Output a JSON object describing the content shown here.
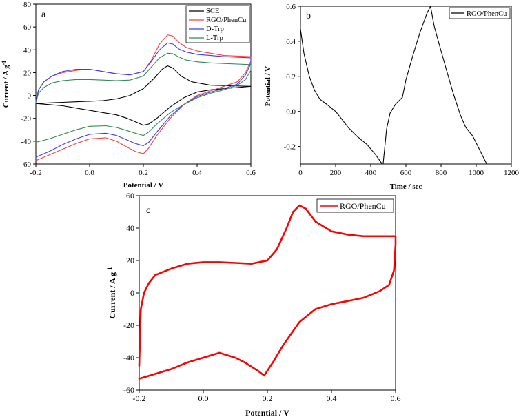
{
  "chart_data": [
    {
      "panel": "a",
      "type": "line",
      "title": "",
      "xlabel": "Potential / V",
      "ylabel": "Current / A g",
      "ylabel_sup": "-1",
      "xlim": [
        -0.2,
        0.6
      ],
      "ylim": [
        -60,
        80
      ],
      "xticks": [
        -0.2,
        0.0,
        0.2,
        0.4,
        0.6
      ],
      "yticks": [
        -60,
        -40,
        -20,
        0,
        20,
        40,
        60,
        80
      ],
      "xtick_labels": [
        "-0.2",
        "0.0",
        "0.2",
        "0.4",
        "0.6"
      ],
      "ytick_labels": [
        "-60",
        "-40",
        "-20",
        "0",
        "20",
        "40",
        "60",
        "80"
      ],
      "legend": "top-right",
      "series": [
        {
          "name": "SCE",
          "color": "#000000",
          "x": [
            -0.2,
            -0.15,
            -0.1,
            -0.05,
            0.0,
            0.05,
            0.1,
            0.15,
            0.2,
            0.24,
            0.27,
            0.29,
            0.31,
            0.34,
            0.38,
            0.45,
            0.52,
            0.6,
            0.6,
            0.55,
            0.5,
            0.45,
            0.4,
            0.35,
            0.3,
            0.25,
            0.22,
            0.2,
            0.18,
            0.14,
            0.1,
            0.05,
            0.0,
            -0.05,
            -0.1,
            -0.15,
            -0.2
          ],
          "y": [
            -7,
            -6.5,
            -6,
            -5.5,
            -5,
            -4.5,
            -3,
            0,
            6,
            15,
            23,
            26,
            24,
            17,
            12,
            9,
            8.5,
            8,
            8,
            7,
            6,
            5,
            3,
            -2,
            -10,
            -20,
            -25,
            -26,
            -24,
            -20,
            -17,
            -15,
            -13,
            -11,
            -9,
            -8,
            -7
          ]
        },
        {
          "name": "RGO/PhenCu",
          "color": "#ff3b3b",
          "x": [
            -0.2,
            -0.19,
            -0.17,
            -0.14,
            -0.1,
            -0.05,
            0.0,
            0.05,
            0.1,
            0.15,
            0.2,
            0.23,
            0.26,
            0.29,
            0.31,
            0.33,
            0.36,
            0.4,
            0.45,
            0.5,
            0.55,
            0.6,
            0.6,
            0.58,
            0.55,
            0.5,
            0.45,
            0.4,
            0.35,
            0.3,
            0.25,
            0.22,
            0.2,
            0.17,
            0.13,
            0.1,
            0.06,
            0.0,
            -0.05,
            -0.1,
            -0.15,
            -0.2
          ],
          "y": [
            -5,
            5,
            12,
            17,
            20,
            22,
            23,
            21,
            19,
            18,
            21,
            31,
            45,
            53,
            52,
            47,
            42,
            39,
            37,
            35,
            34.5,
            34,
            30,
            20,
            12,
            8,
            4,
            0,
            -8,
            -20,
            -35,
            -46,
            -51,
            -49,
            -44,
            -40,
            -37,
            -38,
            -42,
            -47,
            -52,
            -57
          ]
        },
        {
          "name": "D-Trp",
          "color": "#3b3bff",
          "x": [
            -0.2,
            -0.19,
            -0.17,
            -0.14,
            -0.1,
            -0.05,
            0.0,
            0.05,
            0.1,
            0.15,
            0.2,
            0.23,
            0.26,
            0.29,
            0.31,
            0.33,
            0.36,
            0.4,
            0.45,
            0.5,
            0.55,
            0.6,
            0.6,
            0.58,
            0.55,
            0.5,
            0.45,
            0.4,
            0.35,
            0.3,
            0.25,
            0.22,
            0.2,
            0.17,
            0.13,
            0.1,
            0.06,
            0.0,
            -0.05,
            -0.1,
            -0.15,
            -0.2
          ],
          "y": [
            -5,
            5,
            12,
            17,
            21,
            23,
            23,
            21,
            19,
            18,
            21,
            30,
            40,
            46,
            45,
            41,
            38,
            36,
            35,
            34,
            33.5,
            33,
            28,
            18,
            10,
            6,
            3,
            -1,
            -8,
            -18,
            -32,
            -41,
            -44,
            -42,
            -38,
            -35,
            -33,
            -34,
            -38,
            -43,
            -49,
            -54
          ]
        },
        {
          "name": "L-Trp",
          "color": "#2e8b57",
          "x": [
            -0.2,
            -0.19,
            -0.17,
            -0.14,
            -0.1,
            -0.05,
            0.0,
            0.05,
            0.1,
            0.15,
            0.2,
            0.23,
            0.26,
            0.29,
            0.31,
            0.33,
            0.36,
            0.4,
            0.45,
            0.5,
            0.55,
            0.6,
            0.6,
            0.58,
            0.55,
            0.5,
            0.45,
            0.4,
            0.35,
            0.3,
            0.25,
            0.22,
            0.2,
            0.17,
            0.13,
            0.1,
            0.06,
            0.0,
            -0.05,
            -0.1,
            -0.15,
            -0.2
          ],
          "y": [
            -6,
            2,
            7,
            11,
            13,
            14,
            14,
            13.5,
            13,
            13.5,
            17,
            25,
            33,
            37,
            36.5,
            34,
            31,
            29.5,
            28.5,
            28,
            27.5,
            27,
            22,
            14,
            9,
            5,
            2,
            -2,
            -8,
            -15,
            -25,
            -32,
            -35,
            -33,
            -30,
            -28,
            -26.5,
            -27,
            -30,
            -34,
            -38,
            -41
          ]
        }
      ]
    },
    {
      "panel": "b",
      "type": "line",
      "title": "",
      "xlabel": "Time / sec",
      "ylabel": "Potential / V",
      "xlim": [
        0,
        1200
      ],
      "ylim": [
        -0.3,
        0.6
      ],
      "xticks": [
        0,
        200,
        400,
        600,
        800,
        1000,
        1200
      ],
      "yticks": [
        -0.2,
        0.0,
        0.2,
        0.4,
        0.6
      ],
      "xtick_labels": [
        "0",
        "200",
        "400",
        "600",
        "800",
        "1000",
        "1200"
      ],
      "ytick_labels": [
        "-0.2",
        "0.0",
        "0.2",
        "0.4",
        "0.6"
      ],
      "legend": "top-right",
      "series": [
        {
          "name": "RGO/PhenCu",
          "color": "#000000",
          "x": [
            0,
            20,
            50,
            80,
            110,
            150,
            200,
            240,
            270,
            320,
            380,
            430,
            465,
            470,
            490,
            510,
            540,
            560,
            580,
            600,
            640,
            680,
            720,
            740,
            760,
            790,
            830,
            870,
            910,
            940,
            980,
            1020,
            1060
          ],
          "y": [
            0.47,
            0.33,
            0.2,
            0.12,
            0.07,
            0.04,
            0.0,
            -0.05,
            -0.09,
            -0.14,
            -0.19,
            -0.25,
            -0.3,
            -0.3,
            -0.1,
            -0.01,
            0.04,
            0.06,
            0.08,
            0.18,
            0.32,
            0.45,
            0.56,
            0.6,
            0.49,
            0.38,
            0.24,
            0.1,
            -0.02,
            -0.09,
            -0.14,
            -0.22,
            -0.3
          ]
        }
      ]
    },
    {
      "panel": "c",
      "type": "line",
      "title": "",
      "xlabel": "Potential / V",
      "ylabel": "Current / A g",
      "ylabel_sup": "-1",
      "xlim": [
        -0.2,
        0.6
      ],
      "ylim": [
        -60,
        60
      ],
      "xticks": [
        -0.2,
        0.0,
        0.2,
        0.4,
        0.6
      ],
      "yticks": [
        -60,
        -40,
        -20,
        0,
        20,
        40,
        60
      ],
      "xtick_labels": [
        "-0.2",
        "0.0",
        "0.2",
        "0.4",
        "0.6"
      ],
      "ytick_labels": [
        "-60",
        "-40",
        "-20",
        "0",
        "20",
        "40",
        "60"
      ],
      "legend": "top-right",
      "series": [
        {
          "name": "RGO/PhenCu",
          "color": "#ff0000",
          "x": [
            -0.2,
            -0.195,
            -0.185,
            -0.17,
            -0.15,
            -0.1,
            -0.05,
            0.0,
            0.05,
            0.1,
            0.15,
            0.2,
            0.23,
            0.26,
            0.28,
            0.3,
            0.32,
            0.35,
            0.4,
            0.45,
            0.5,
            0.55,
            0.6,
            0.6,
            0.595,
            0.58,
            0.55,
            0.5,
            0.45,
            0.4,
            0.35,
            0.3,
            0.25,
            0.22,
            0.2,
            0.19,
            0.17,
            0.13,
            0.1,
            0.05,
            0.0,
            -0.05,
            -0.1,
            -0.15,
            -0.2
          ],
          "y": [
            -45,
            -10,
            0,
            6,
            11,
            15,
            18,
            19,
            19,
            18.5,
            18,
            20,
            27,
            40,
            50,
            54,
            52,
            44,
            38,
            36,
            35,
            35,
            35,
            30,
            14,
            5,
            1,
            -3,
            -5,
            -7,
            -10,
            -18,
            -32,
            -42,
            -48,
            -51,
            -48,
            -43,
            -40,
            -37,
            -40,
            -43,
            -47,
            -50,
            -53
          ]
        }
      ]
    }
  ]
}
